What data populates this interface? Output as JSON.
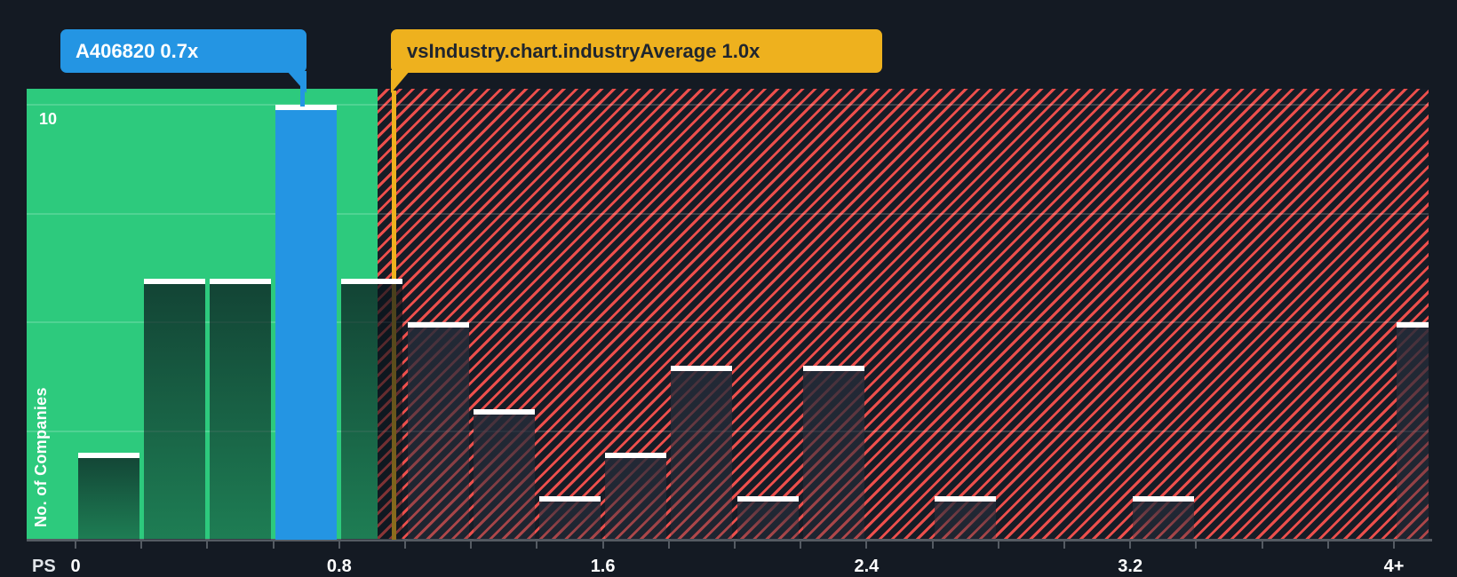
{
  "page": {
    "background": "#141a23"
  },
  "tooltips": {
    "company": {
      "label": "A406820 0.7x",
      "color": "#2495e3",
      "text_color": "#ffffff"
    },
    "industry": {
      "label": "vsIndustry.chart.industryAverage 1.0x",
      "color": "#eeb11e",
      "text_color": "#20262e"
    }
  },
  "axes": {
    "x_title": "PS",
    "y_title": "No. of Companies",
    "y_tick_label": "10"
  },
  "chart_data": {
    "type": "bar",
    "title": "Price-to-Sales histogram vs industry",
    "xlabel": "PS",
    "ylabel": "No. of Companies",
    "bin_width": 0.2,
    "xlim": [
      0,
      4.1
    ],
    "ylim": [
      0,
      10.37
    ],
    "grid": true,
    "y_gridlines": [
      2.5,
      5,
      7.5,
      10
    ],
    "y_tick_labels_shown": [
      "10"
    ],
    "x_ticks": [
      {
        "value": 0.0,
        "label": "0"
      },
      {
        "value": 0.8,
        "label": "0.8"
      },
      {
        "value": 1.6,
        "label": "1.6"
      },
      {
        "value": 2.4,
        "label": "2.4"
      },
      {
        "value": 3.2,
        "label": "3.2"
      },
      {
        "value": 4.0,
        "label": "4+"
      }
    ],
    "bins": [
      {
        "start": 0.0,
        "count": 2
      },
      {
        "start": 0.2,
        "count": 6
      },
      {
        "start": 0.4,
        "count": 6
      },
      {
        "start": 0.6,
        "count": 10,
        "highlight": true
      },
      {
        "start": 0.8,
        "count": 6
      },
      {
        "start": 1.0,
        "count": 5
      },
      {
        "start": 1.2,
        "count": 3
      },
      {
        "start": 1.4,
        "count": 1
      },
      {
        "start": 1.6,
        "count": 2
      },
      {
        "start": 1.8,
        "count": 4
      },
      {
        "start": 2.0,
        "count": 1
      },
      {
        "start": 2.2,
        "count": 4
      },
      {
        "start": 2.6,
        "count": 1
      },
      {
        "start": 3.2,
        "count": 1
      },
      {
        "start": 4.0,
        "count": 5,
        "overflow": true
      }
    ],
    "company_marker": {
      "label": "A406820 0.7x",
      "value": 0.7,
      "count": 10,
      "color": "#2495e3"
    },
    "industry_marker": {
      "label": "vsIndustry.chart.industryAverage 1.0x",
      "value": 1.0,
      "color": "#eeb11e"
    },
    "regions": {
      "below_average_color": "#2dca7d",
      "above_average_hatch_color": "#ec4f4c",
      "legend_position": "none"
    }
  }
}
